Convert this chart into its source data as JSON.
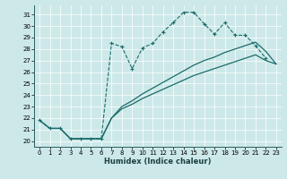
{
  "background_color": "#cde8e8",
  "line_color": "#1a6b6b",
  "xlim": [
    -0.5,
    23.5
  ],
  "ylim": [
    19.5,
    31.8
  ],
  "xticks": [
    0,
    1,
    2,
    3,
    4,
    5,
    6,
    7,
    8,
    9,
    10,
    11,
    12,
    13,
    14,
    15,
    16,
    17,
    18,
    19,
    20,
    21,
    22,
    23
  ],
  "yticks": [
    20,
    21,
    22,
    23,
    24,
    25,
    26,
    27,
    28,
    29,
    30,
    31
  ],
  "xlabel": "Humidex (Indice chaleur)",
  "dashed_x": [
    0,
    1,
    2,
    3,
    4,
    5,
    6,
    7,
    8,
    9,
    10,
    11,
    12,
    13,
    14,
    15,
    16,
    17,
    18,
    19,
    20,
    21,
    22
  ],
  "dashed_y": [
    21.8,
    21.1,
    21.1,
    20.2,
    20.2,
    20.2,
    20.2,
    28.5,
    28.2,
    26.3,
    28.1,
    28.5,
    29.5,
    30.3,
    31.2,
    31.2,
    30.2,
    29.3,
    30.3,
    29.2,
    29.2,
    28.3,
    27.2
  ],
  "line1_x": [
    0,
    1,
    2,
    3,
    4,
    5,
    6,
    7,
    8,
    9,
    10,
    11,
    12,
    13,
    14,
    15,
    16,
    17,
    18,
    19,
    20,
    21,
    22,
    23
  ],
  "line1_y": [
    21.8,
    21.1,
    21.1,
    20.2,
    20.2,
    20.2,
    20.2,
    22.0,
    22.8,
    23.2,
    23.7,
    24.1,
    24.5,
    24.9,
    25.3,
    25.7,
    26.0,
    26.3,
    26.6,
    26.9,
    27.2,
    27.5,
    27.0,
    26.7
  ],
  "line2_x": [
    0,
    1,
    2,
    3,
    4,
    5,
    6,
    7,
    8,
    9,
    10,
    11,
    12,
    13,
    14,
    15,
    16,
    17,
    18,
    19,
    20,
    21,
    22,
    23
  ],
  "line2_y": [
    21.8,
    21.1,
    21.1,
    20.2,
    20.2,
    20.2,
    20.2,
    22.0,
    23.0,
    23.5,
    24.1,
    24.6,
    25.1,
    25.6,
    26.1,
    26.6,
    27.0,
    27.3,
    27.7,
    28.0,
    28.3,
    28.6,
    27.8,
    26.7
  ]
}
